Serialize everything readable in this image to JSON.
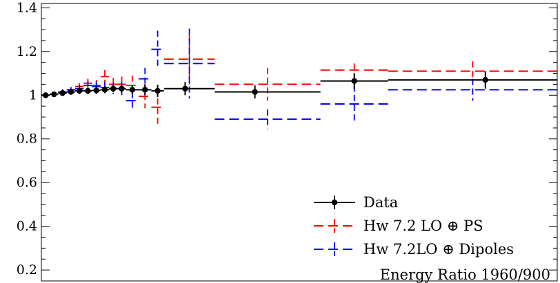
{
  "chart_data": {
    "type": "line",
    "title": "",
    "xlabel": "",
    "ylabel": "",
    "ylim": [
      0.15,
      1.42
    ],
    "yticks": [
      0.2,
      0.4,
      0.6,
      0.8,
      1,
      1.2,
      1.4
    ],
    "ytick_labels": [
      "0.2",
      "0.4",
      "0.6",
      "0.8",
      "1",
      "1.2",
      "1.4"
    ],
    "x_bin_edges": [
      0,
      1,
      2,
      3,
      4,
      5,
      6,
      7,
      8,
      9,
      10,
      11.5,
      13,
      14.5,
      16,
      18,
      20.5,
      23.5,
      27,
      33,
      41,
      50,
      61
    ],
    "series": [
      {
        "name": "Data",
        "color": "#000000",
        "style": "solid",
        "points": [
          {
            "x": 0.5,
            "y": 1.0,
            "err": 0.012
          },
          {
            "x": 1.5,
            "y": 1.004,
            "err": 0.012
          },
          {
            "x": 2.5,
            "y": 1.01,
            "err": 0.012
          },
          {
            "x": 3.5,
            "y": 1.015,
            "err": 0.012
          },
          {
            "x": 4.5,
            "y": 1.02,
            "err": 0.014
          },
          {
            "x": 5.5,
            "y": 1.02,
            "err": 0.015
          },
          {
            "x": 6.5,
            "y": 1.022,
            "err": 0.015
          },
          {
            "x": 7.5,
            "y": 1.025,
            "err": 0.016
          },
          {
            "x": 8.5,
            "y": 1.03,
            "err": 0.016
          },
          {
            "x": 9.5,
            "y": 1.03,
            "err": 0.018
          },
          {
            "x": 10.75,
            "y": 1.025,
            "err": 0.022
          },
          {
            "x": 12.25,
            "y": 1.025,
            "err": 0.025
          },
          {
            "x": 13.75,
            "y": 1.02,
            "err": 0.028
          },
          {
            "x": 17.0,
            "y": 1.03,
            "err": 0.03
          },
          {
            "x": 25.25,
            "y": 1.015,
            "err": 0.03
          },
          {
            "x": 37.0,
            "y": 1.065,
            "err": 0.035
          },
          {
            "x": 52.5,
            "y": 1.07,
            "err": 0.04
          }
        ],
        "hist": [
          {
            "x0": 0,
            "x1": 1,
            "y": 1.0
          },
          {
            "x0": 1,
            "x1": 2,
            "y": 1.004
          },
          {
            "x0": 2,
            "x1": 3,
            "y": 1.01
          },
          {
            "x0": 3,
            "x1": 4,
            "y": 1.015
          },
          {
            "x0": 4,
            "x1": 5,
            "y": 1.02
          },
          {
            "x0": 5,
            "x1": 6,
            "y": 1.02
          },
          {
            "x0": 6,
            "x1": 7,
            "y": 1.022
          },
          {
            "x0": 7,
            "x1": 8,
            "y": 1.025
          },
          {
            "x0": 8,
            "x1": 9,
            "y": 1.03
          },
          {
            "x0": 9,
            "x1": 10,
            "y": 1.03
          },
          {
            "x0": 10,
            "x1": 11.5,
            "y": 1.025
          },
          {
            "x0": 11.5,
            "x1": 13,
            "y": 1.025
          },
          {
            "x0": 13,
            "x1": 14.5,
            "y": 1.02
          },
          {
            "x0": 14.5,
            "x1": 20.5,
            "y": 1.03
          },
          {
            "x0": 20.5,
            "x1": 33,
            "y": 1.015
          },
          {
            "x0": 33,
            "x1": 41,
            "y": 1.065
          },
          {
            "x0": 41,
            "x1": 61,
            "y": 1.07
          }
        ]
      },
      {
        "name": "Hw 7.2 LO ⊕ PS",
        "color": "#ff0000",
        "style": "dashed",
        "hist": [
          {
            "x0": 0,
            "x1": 1,
            "y": 1.0,
            "err": 0.01
          },
          {
            "x0": 1,
            "x1": 2,
            "y": 1.005,
            "err": 0.01
          },
          {
            "x0": 2,
            "x1": 3,
            "y": 1.015,
            "err": 0.012
          },
          {
            "x0": 3,
            "x1": 4,
            "y": 1.025,
            "err": 0.012
          },
          {
            "x0": 4,
            "x1": 5,
            "y": 1.04,
            "err": 0.015
          },
          {
            "x0": 5,
            "x1": 6,
            "y": 1.055,
            "err": 0.02
          },
          {
            "x0": 6,
            "x1": 7,
            "y": 1.045,
            "err": 0.025
          },
          {
            "x0": 7,
            "x1": 8,
            "y": 1.085,
            "err": 0.03
          },
          {
            "x0": 8,
            "x1": 9,
            "y": 1.05,
            "err": 0.03
          },
          {
            "x0": 9,
            "x1": 10,
            "y": 1.05,
            "err": 0.035
          },
          {
            "x0": 10,
            "x1": 11.5,
            "y": 1.045,
            "err": 0.045
          },
          {
            "x0": 11.5,
            "x1": 13,
            "y": 0.995,
            "err": 0.055
          },
          {
            "x0": 13,
            "x1": 14.5,
            "y": 0.945,
            "err": 0.085
          },
          {
            "x0": 14.5,
            "x1": 20.5,
            "y": 1.165,
            "err": 0.115
          },
          {
            "x0": 20.5,
            "x1": 33,
            "y": 1.05,
            "err": 0.075
          },
          {
            "x0": 33,
            "x1": 41,
            "y": 1.115,
            "err": 0.03
          },
          {
            "x0": 41,
            "x1": 61,
            "y": 1.11,
            "err": 0.045
          }
        ]
      },
      {
        "name": "Hw 7.2LO ⊕ Dipoles",
        "color": "#0000ff",
        "style": "dashed",
        "hist": [
          {
            "x0": 0,
            "x1": 1,
            "y": 1.0,
            "err": 0.01
          },
          {
            "x0": 1,
            "x1": 2,
            "y": 1.005,
            "err": 0.01
          },
          {
            "x0": 2,
            "x1": 3,
            "y": 1.015,
            "err": 0.012
          },
          {
            "x0": 3,
            "x1": 4,
            "y": 1.025,
            "err": 0.012
          },
          {
            "x0": 4,
            "x1": 5,
            "y": 1.03,
            "err": 0.015
          },
          {
            "x0": 5,
            "x1": 6,
            "y": 1.045,
            "err": 0.02
          },
          {
            "x0": 6,
            "x1": 7,
            "y": 1.04,
            "err": 0.02
          },
          {
            "x0": 7,
            "x1": 8,
            "y": 1.035,
            "err": 0.025
          },
          {
            "x0": 8,
            "x1": 9,
            "y": 1.03,
            "err": 0.025
          },
          {
            "x0": 9,
            "x1": 10,
            "y": 1.03,
            "err": 0.03
          },
          {
            "x0": 10,
            "x1": 11.5,
            "y": 0.975,
            "err": 0.04
          },
          {
            "x0": 11.5,
            "x1": 13,
            "y": 1.075,
            "err": 0.05
          },
          {
            "x0": 13,
            "x1": 14.5,
            "y": 1.21,
            "err": 0.085
          },
          {
            "x0": 14.5,
            "x1": 20.5,
            "y": 1.145,
            "err": 0.16
          },
          {
            "x0": 20.5,
            "x1": 33,
            "y": 0.89,
            "err": 0.045
          },
          {
            "x0": 33,
            "x1": 41,
            "y": 0.96,
            "err": 0.085
          },
          {
            "x0": 41,
            "x1": 61,
            "y": 1.025,
            "err": 0.05
          }
        ]
      }
    ],
    "legend": {
      "placement": "bottom-right",
      "entries": [
        "Data",
        "Hw 7.2 LO ⊕ PS",
        "Hw 7.2LO ⊕ Dipoles"
      ]
    },
    "annotation": "Energy Ratio 1960/900"
  }
}
